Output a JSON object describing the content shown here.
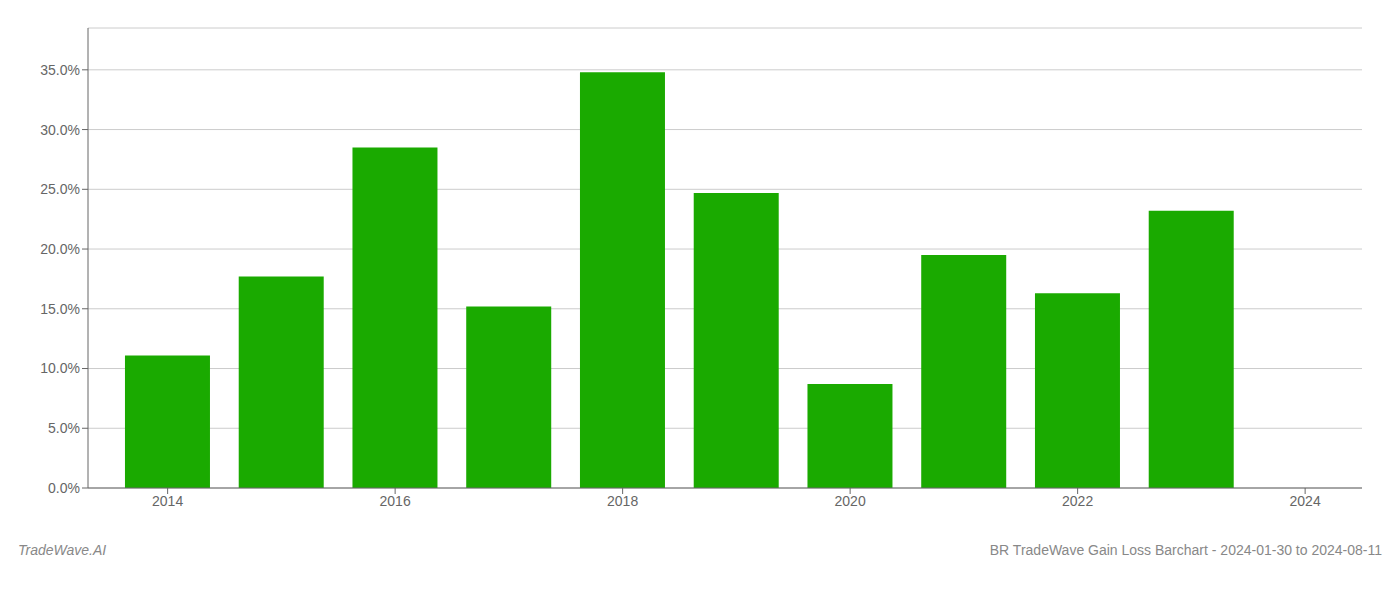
{
  "chart_data": {
    "type": "bar",
    "title": "BR TradeWave Gain Loss Barchart - 2024-01-30 to 2024-08-11",
    "annotations": [
      "TradeWave.AI"
    ],
    "x": [
      2014,
      2015,
      2016,
      2017,
      2018,
      2019,
      2020,
      2021,
      2022,
      2023
    ],
    "values": [
      0.111,
      0.177,
      0.285,
      0.152,
      0.348,
      0.247,
      0.087,
      0.195,
      0.163,
      0.232
    ],
    "color": "#1aaa00",
    "xlim": [
      2013.3,
      2024.5
    ],
    "xticks": [
      2014,
      2016,
      2018,
      2020,
      2022,
      2024
    ],
    "ylim": [
      0,
      0.385
    ],
    "yticks": [
      {
        "value": 0.0,
        "label": "0.0%"
      },
      {
        "value": 0.05,
        "label": "5.0%"
      },
      {
        "value": 0.1,
        "label": "10.0%"
      },
      {
        "value": 0.15,
        "label": "15.0%"
      },
      {
        "value": 0.2,
        "label": "20.0%"
      },
      {
        "value": 0.25,
        "label": "25.0%"
      },
      {
        "value": 0.3,
        "label": "30.0%"
      },
      {
        "value": 0.35,
        "label": "35.0%"
      }
    ],
    "grid": true
  }
}
